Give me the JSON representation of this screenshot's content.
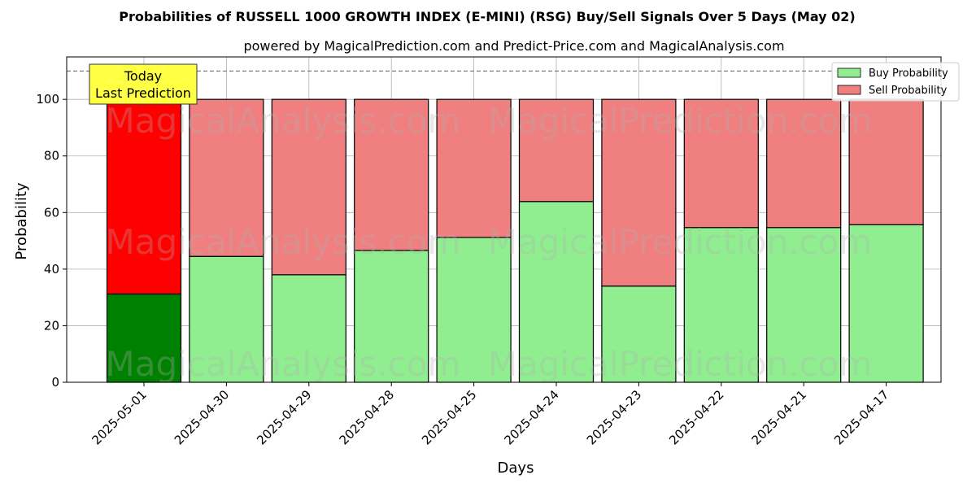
{
  "chart_data": {
    "type": "bar",
    "stacked": true,
    "title": "Probabilities of RUSSELL 1000 GROWTH INDEX (E-MINI) (RSG) Buy/Sell Signals Over 5 Days (May 02)",
    "subtitle": "powered by MagicalPrediction.com and Predict-Price.com and MagicalAnalysis.com",
    "xlabel": "Days",
    "ylabel": "Probability",
    "ylim": [
      0,
      115
    ],
    "yticks": [
      0,
      20,
      40,
      60,
      80,
      100
    ],
    "reference_line": 110,
    "grid": true,
    "legend_position": "top-right",
    "categories": [
      "2025-05-01",
      "2025-04-30",
      "2025-04-29",
      "2025-04-28",
      "2025-04-25",
      "2025-04-24",
      "2025-04-23",
      "2025-04-22",
      "2025-04-21",
      "2025-04-17"
    ],
    "series": [
      {
        "name": "Buy Probability",
        "color": "#90ee90",
        "highlight_color": "#008000",
        "values": [
          31.2,
          44.5,
          38.0,
          46.6,
          51.2,
          63.9,
          34.0,
          54.7,
          54.7,
          55.7
        ]
      },
      {
        "name": "Sell Probability",
        "color": "#f08080",
        "highlight_color": "#ff0000",
        "values": [
          68.8,
          55.5,
          62.0,
          53.4,
          48.8,
          36.1,
          66.0,
          45.3,
          45.3,
          44.3
        ]
      }
    ],
    "annotation": {
      "lines": [
        "Today",
        "Last Prediction"
      ],
      "color": "#ffff44"
    },
    "watermarks": [
      "MagicalAnalysis.com",
      "MagicalPrediction.com"
    ]
  }
}
